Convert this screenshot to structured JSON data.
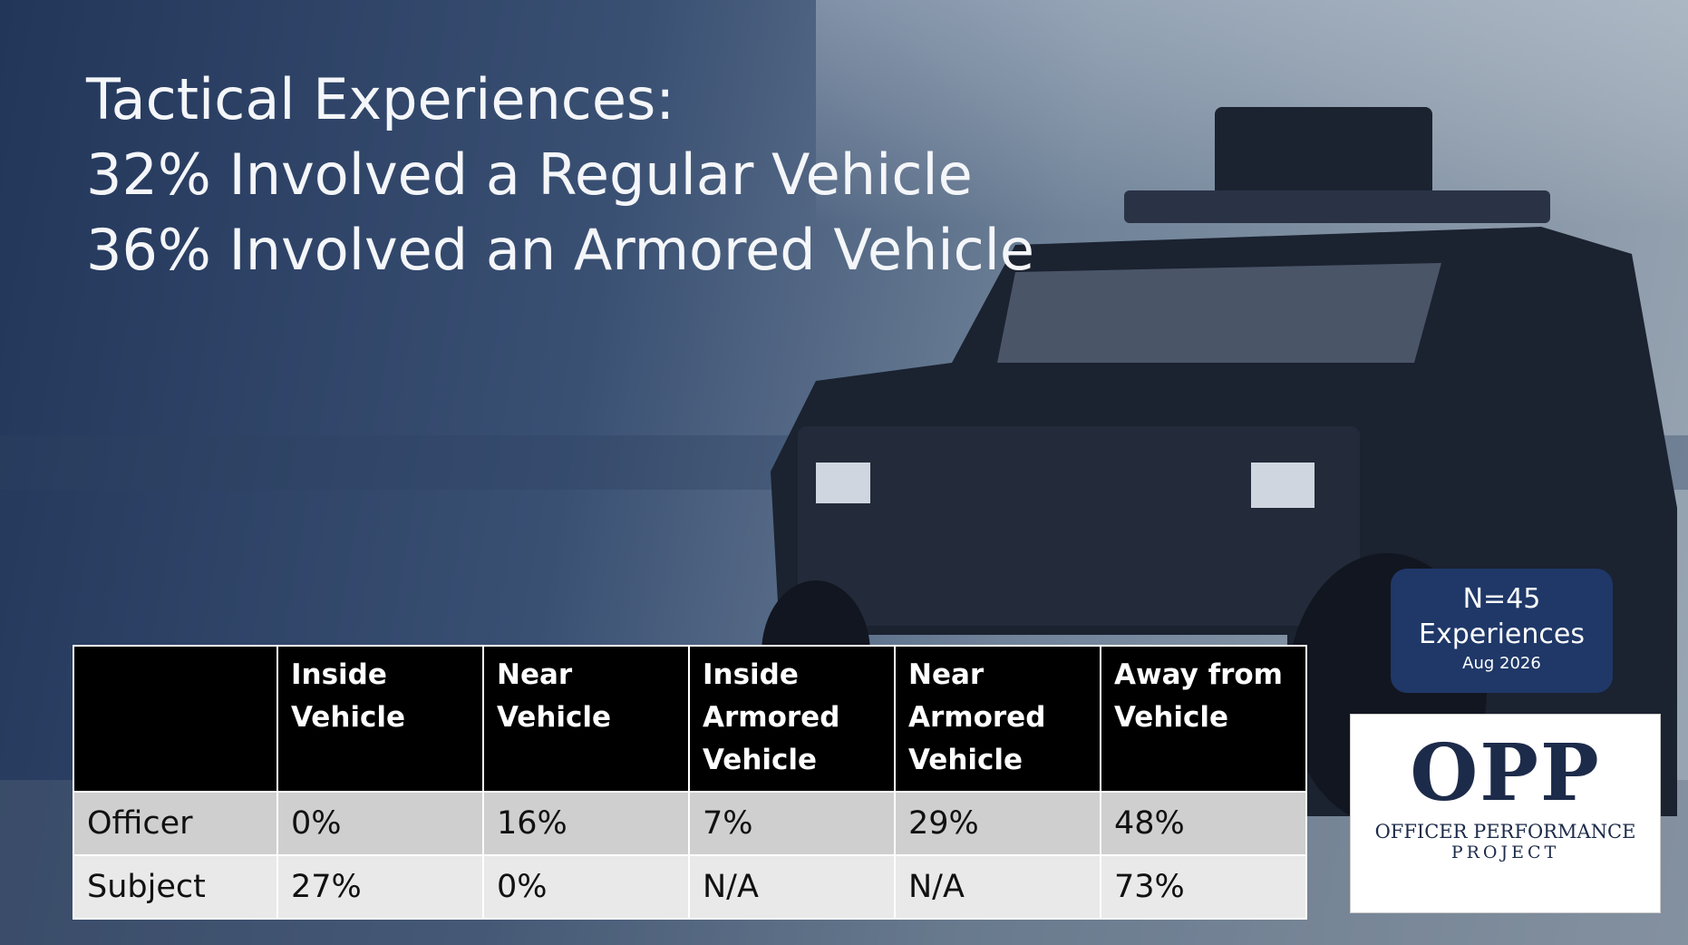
{
  "title": [
    "Tactical Experiences:",
    "32% Involved a Regular Vehicle",
    "36% Involved an Armored Vehicle"
  ],
  "table": {
    "header": [
      [
        "Inside",
        "Vehicle"
      ],
      [
        "Near",
        "Vehicle"
      ],
      [
        "Inside",
        "Armored",
        "Vehicle"
      ],
      [
        "Near",
        "Armored",
        "Vehicle"
      ],
      [
        "Away from",
        "Vehicle"
      ]
    ],
    "rows": [
      {
        "label": "Officer",
        "cells": [
          "0%",
          "16%",
          "7%",
          "29%",
          "48%"
        ]
      },
      {
        "label": "Subject",
        "cells": [
          "27%",
          "0%",
          "N/A",
          "N/A",
          "73%"
        ]
      }
    ]
  },
  "badge": {
    "count": "N=45",
    "unit": "Experiences",
    "date": "Aug 2026"
  },
  "logo": {
    "mark": "OPP",
    "line1": "OFFICER PERFORMANCE",
    "line2": "PROJECT"
  }
}
